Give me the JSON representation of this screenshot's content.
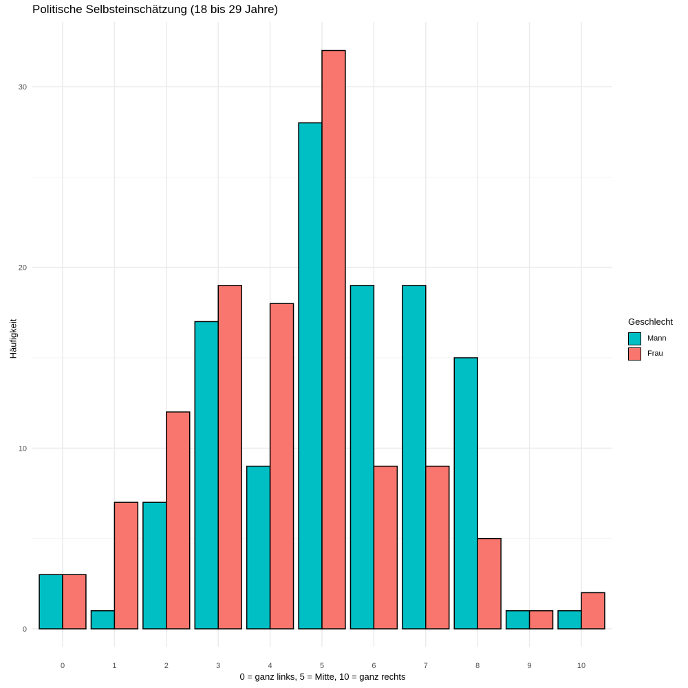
{
  "chart_data": {
    "type": "bar",
    "title": "Politische Selbsteinschätzung (18 bis 29 Jahre)",
    "xlabel": "0 = ganz links, 5 = Mitte, 10 = ganz rechts",
    "ylabel": "Häufigkeit",
    "categories": [
      "0",
      "1",
      "2",
      "3",
      "4",
      "5",
      "6",
      "7",
      "8",
      "9",
      "10"
    ],
    "series": [
      {
        "name": "Mann",
        "color": "#00BFC4",
        "values": [
          3,
          1,
          7,
          17,
          9,
          28,
          19,
          19,
          15,
          1,
          1
        ]
      },
      {
        "name": "Frau",
        "color": "#F8766D",
        "values": [
          3,
          7,
          12,
          19,
          18,
          32,
          9,
          9,
          5,
          1,
          2
        ]
      }
    ],
    "ylim": [
      0,
      32
    ],
    "yticks": [
      0,
      10,
      20,
      30
    ],
    "grid": true,
    "legend": {
      "title": "Geschlecht",
      "position": "right"
    }
  }
}
